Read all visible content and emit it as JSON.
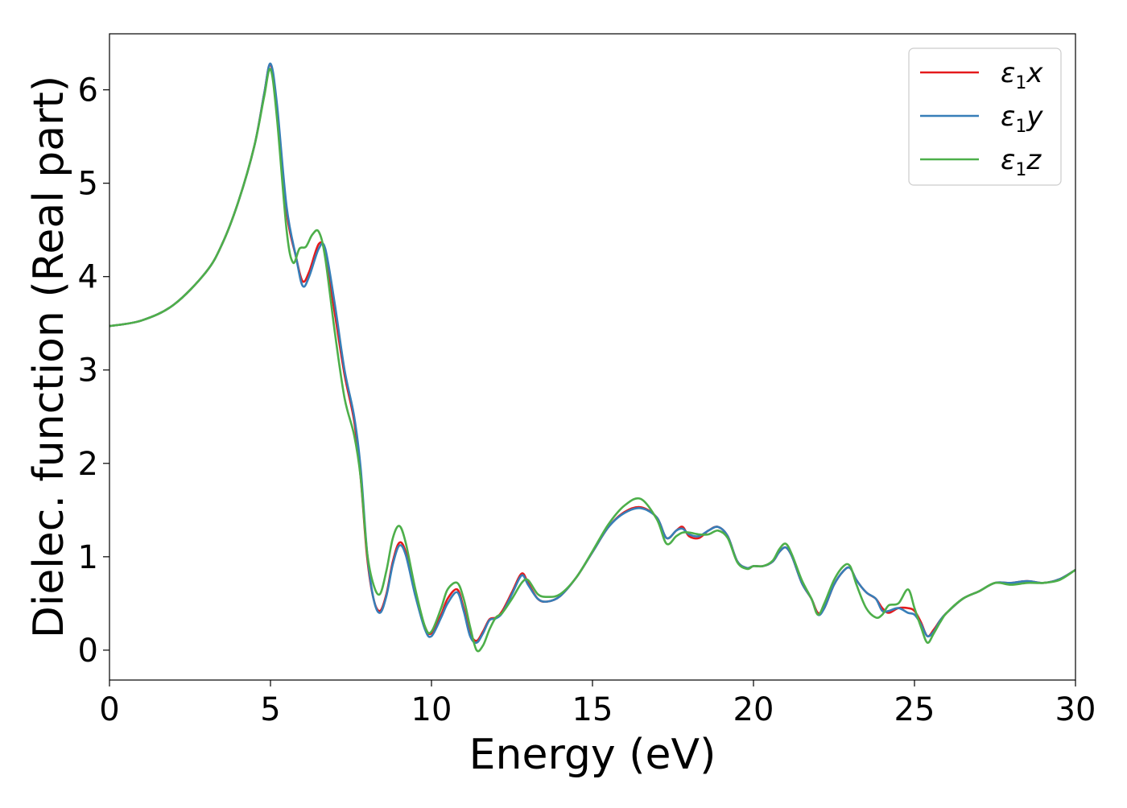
{
  "chart_data": {
    "type": "line",
    "xlabel": "Energy (eV)",
    "ylabel": "Dielec. function (Real part)",
    "xlim": [
      0,
      30
    ],
    "ylim": [
      -0.32,
      6.6
    ],
    "xticks": [
      0,
      5,
      10,
      15,
      20,
      25,
      30
    ],
    "yticks": [
      0,
      1,
      2,
      3,
      4,
      5,
      6
    ],
    "grid": false,
    "legend_position": "top-right",
    "series": [
      {
        "name": "ε1x",
        "legend_base": "ε",
        "legend_sub": "1",
        "legend_suffix": "x",
        "color": "#e41a1c",
        "x": [
          0,
          1,
          2,
          3,
          3.5,
          4,
          4.5,
          4.8,
          5,
          5.2,
          5.5,
          5.8,
          6,
          6.2,
          6.5,
          6.7,
          7,
          7.3,
          7.6,
          7.8,
          8,
          8.2,
          8.4,
          8.6,
          8.8,
          9,
          9.2,
          9.5,
          9.8,
          10,
          10.3,
          10.5,
          10.8,
          11,
          11.2,
          11.4,
          11.6,
          11.8,
          12,
          12.2,
          12.5,
          12.8,
          13,
          13.3,
          13.6,
          14,
          14.5,
          15,
          15.5,
          16,
          16.5,
          17,
          17.3,
          17.6,
          17.8,
          18,
          18.3,
          18.6,
          18.9,
          19.2,
          19.5,
          19.8,
          20,
          20.3,
          20.6,
          20.8,
          21,
          21.2,
          21.5,
          21.8,
          22,
          22.2,
          22.5,
          22.8,
          23,
          23.2,
          23.5,
          23.8,
          24,
          24.2,
          24.5,
          24.8,
          25,
          25.2,
          25.4,
          25.6,
          25.8,
          26,
          26.5,
          27,
          27.5,
          28,
          28.5,
          29,
          29.5,
          30
        ],
        "y": [
          3.47,
          3.53,
          3.7,
          4.05,
          4.35,
          4.8,
          5.4,
          5.95,
          6.27,
          5.8,
          4.7,
          4.2,
          3.95,
          4.05,
          4.35,
          4.25,
          3.6,
          2.95,
          2.45,
          1.85,
          1.0,
          0.55,
          0.42,
          0.6,
          0.95,
          1.15,
          1.05,
          0.6,
          0.25,
          0.18,
          0.38,
          0.55,
          0.65,
          0.45,
          0.18,
          0.1,
          0.2,
          0.33,
          0.35,
          0.42,
          0.62,
          0.82,
          0.72,
          0.55,
          0.52,
          0.58,
          0.78,
          1.05,
          1.32,
          1.48,
          1.53,
          1.42,
          1.2,
          1.28,
          1.32,
          1.22,
          1.2,
          1.28,
          1.32,
          1.22,
          0.95,
          0.88,
          0.9,
          0.9,
          0.95,
          1.05,
          1.1,
          1.0,
          0.72,
          0.55,
          0.4,
          0.45,
          0.7,
          0.85,
          0.88,
          0.75,
          0.62,
          0.55,
          0.45,
          0.4,
          0.45,
          0.45,
          0.42,
          0.3,
          0.15,
          0.22,
          0.32,
          0.4,
          0.55,
          0.63,
          0.72,
          0.72,
          0.74,
          0.72,
          0.76,
          0.86
        ]
      },
      {
        "name": "ε1y",
        "legend_base": "ε",
        "legend_sub": "1",
        "legend_suffix": "y",
        "color": "#377eb8",
        "x": [
          0,
          1,
          2,
          3,
          3.5,
          4,
          4.5,
          4.8,
          5,
          5.2,
          5.5,
          5.8,
          6,
          6.2,
          6.5,
          6.7,
          7,
          7.3,
          7.6,
          7.8,
          8,
          8.2,
          8.4,
          8.6,
          8.8,
          9,
          9.2,
          9.5,
          9.8,
          10,
          10.3,
          10.5,
          10.8,
          11,
          11.2,
          11.4,
          11.6,
          11.8,
          12,
          12.2,
          12.5,
          12.8,
          13,
          13.3,
          13.6,
          14,
          14.5,
          15,
          15.5,
          16,
          16.5,
          17,
          17.3,
          17.6,
          17.8,
          18,
          18.3,
          18.6,
          18.9,
          19.2,
          19.5,
          19.8,
          20,
          20.3,
          20.6,
          20.8,
          21,
          21.2,
          21.5,
          21.8,
          22,
          22.2,
          22.5,
          22.8,
          23,
          23.2,
          23.5,
          23.8,
          24,
          24.2,
          24.5,
          24.8,
          25,
          25.2,
          25.4,
          25.6,
          25.8,
          26,
          26.5,
          27,
          27.5,
          28,
          28.5,
          29,
          29.5,
          30
        ],
        "y": [
          3.47,
          3.53,
          3.7,
          4.05,
          4.35,
          4.8,
          5.4,
          5.95,
          6.28,
          5.85,
          4.75,
          4.2,
          3.9,
          4.0,
          4.3,
          4.3,
          3.7,
          3.0,
          2.5,
          1.95,
          1.05,
          0.55,
          0.4,
          0.58,
          0.92,
          1.12,
          1.02,
          0.58,
          0.22,
          0.15,
          0.35,
          0.5,
          0.62,
          0.42,
          0.15,
          0.08,
          0.18,
          0.32,
          0.34,
          0.4,
          0.6,
          0.8,
          0.7,
          0.55,
          0.52,
          0.58,
          0.78,
          1.05,
          1.32,
          1.47,
          1.52,
          1.42,
          1.2,
          1.28,
          1.3,
          1.24,
          1.22,
          1.28,
          1.32,
          1.22,
          0.95,
          0.88,
          0.9,
          0.9,
          0.95,
          1.05,
          1.1,
          1.0,
          0.72,
          0.55,
          0.38,
          0.45,
          0.7,
          0.85,
          0.88,
          0.75,
          0.62,
          0.55,
          0.42,
          0.42,
          0.45,
          0.4,
          0.38,
          0.28,
          0.15,
          0.2,
          0.32,
          0.4,
          0.55,
          0.63,
          0.72,
          0.72,
          0.74,
          0.72,
          0.76,
          0.86
        ]
      },
      {
        "name": "ε1z",
        "legend_base": "ε",
        "legend_sub": "1",
        "legend_suffix": "z",
        "color": "#4daf4a",
        "x": [
          0,
          1,
          2,
          3,
          3.5,
          4,
          4.5,
          4.8,
          5,
          5.2,
          5.5,
          5.7,
          5.9,
          6.1,
          6.3,
          6.5,
          6.7,
          7,
          7.3,
          7.6,
          7.8,
          8,
          8.2,
          8.4,
          8.6,
          8.8,
          9,
          9.2,
          9.5,
          9.8,
          10,
          10.3,
          10.5,
          10.8,
          11,
          11.2,
          11.4,
          11.6,
          11.8,
          12,
          12.2,
          12.5,
          12.8,
          13,
          13.3,
          13.6,
          14,
          14.5,
          15,
          15.5,
          16,
          16.5,
          17,
          17.3,
          17.6,
          17.8,
          18,
          18.3,
          18.6,
          18.9,
          19.2,
          19.5,
          19.8,
          20,
          20.3,
          20.6,
          20.8,
          21,
          21.2,
          21.5,
          21.8,
          22,
          22.2,
          22.5,
          22.8,
          23,
          23.2,
          23.5,
          23.8,
          24,
          24.2,
          24.5,
          24.8,
          25,
          25.2,
          25.4,
          25.6,
          25.8,
          26,
          26.5,
          27,
          27.5,
          28,
          28.5,
          29,
          29.5,
          30
        ],
        "y": [
          3.47,
          3.53,
          3.7,
          4.05,
          4.35,
          4.8,
          5.4,
          5.92,
          6.22,
          5.7,
          4.5,
          4.15,
          4.3,
          4.32,
          4.45,
          4.48,
          4.2,
          3.4,
          2.7,
          2.3,
          1.85,
          1.05,
          0.7,
          0.6,
          0.85,
          1.2,
          1.33,
          1.15,
          0.65,
          0.25,
          0.2,
          0.45,
          0.65,
          0.72,
          0.55,
          0.25,
          0.0,
          0.05,
          0.22,
          0.35,
          0.4,
          0.55,
          0.72,
          0.75,
          0.6,
          0.57,
          0.6,
          0.78,
          1.06,
          1.35,
          1.55,
          1.62,
          1.4,
          1.14,
          1.22,
          1.26,
          1.26,
          1.24,
          1.24,
          1.28,
          1.2,
          0.94,
          0.87,
          0.9,
          0.9,
          0.96,
          1.08,
          1.14,
          1.02,
          0.75,
          0.55,
          0.38,
          0.5,
          0.75,
          0.9,
          0.9,
          0.7,
          0.45,
          0.35,
          0.38,
          0.48,
          0.5,
          0.65,
          0.45,
          0.25,
          0.08,
          0.18,
          0.3,
          0.4,
          0.55,
          0.63,
          0.72,
          0.7,
          0.72,
          0.72,
          0.75,
          0.86
        ]
      }
    ]
  }
}
